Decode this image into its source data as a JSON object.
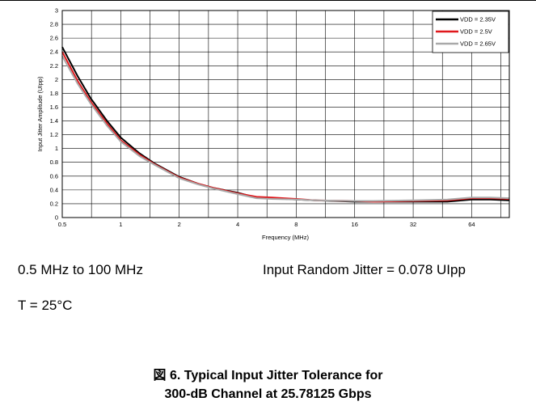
{
  "chart_data": {
    "type": "line",
    "title": "",
    "xlabel": "Frequency (MHz)",
    "ylabel": "Input Jitter Amplitude (UIpp)",
    "xscale": "log2",
    "xlim": [
      0.5,
      100
    ],
    "ylim": [
      0,
      3
    ],
    "grid": true,
    "legend_position": "top-right",
    "x_ticks": [
      0.5,
      1,
      2,
      4,
      8,
      16,
      32,
      64
    ],
    "x_tick_labels": [
      "0.5",
      "1",
      "2",
      "4",
      "8",
      "16",
      "32",
      "64"
    ],
    "y_ticks": [
      0,
      0.2,
      0.4,
      0.6,
      0.8,
      1,
      1.2,
      1.4,
      1.6,
      1.8,
      2,
      2.2,
      2.4,
      2.6,
      2.8,
      3
    ],
    "y_tick_labels": [
      "0",
      "0.2",
      "0.4",
      "0.6",
      "0.8",
      "1",
      "1.2",
      "1.4",
      "1.6",
      "1.8",
      "2",
      "2.2",
      "2.4",
      "2.6",
      "2.8",
      "3"
    ],
    "x": [
      0.5,
      0.6,
      0.7,
      0.85,
      1,
      1.25,
      1.5,
      2,
      2.5,
      3,
      4,
      5,
      6,
      8,
      10,
      16,
      20,
      32,
      48,
      64,
      80,
      100
    ],
    "series": [
      {
        "name": "VDD = 2.35V",
        "color": "#000000",
        "values": [
          2.47,
          2.05,
          1.73,
          1.4,
          1.16,
          0.93,
          0.78,
          0.59,
          0.49,
          0.43,
          0.36,
          0.29,
          0.28,
          0.26,
          0.25,
          0.23,
          0.23,
          0.23,
          0.23,
          0.26,
          0.26,
          0.25
        ]
      },
      {
        "name": "VDD = 2.5V",
        "color": "#e0181c",
        "values": [
          2.4,
          1.98,
          1.68,
          1.36,
          1.12,
          0.91,
          0.77,
          0.58,
          0.49,
          0.43,
          0.35,
          0.3,
          0.29,
          0.27,
          0.25,
          0.24,
          0.23,
          0.24,
          0.25,
          0.28,
          0.28,
          0.27
        ]
      },
      {
        "name": "VDD = 2.65V",
        "color": "#a9a9a9",
        "values": [
          2.34,
          1.94,
          1.65,
          1.33,
          1.1,
          0.89,
          0.76,
          0.57,
          0.48,
          0.42,
          0.34,
          0.28,
          0.27,
          0.26,
          0.25,
          0.24,
          0.24,
          0.25,
          0.26,
          0.29,
          0.29,
          0.28
        ]
      }
    ]
  },
  "conditions": {
    "frequency_range": "0.5 MHz to 100 MHz",
    "temperature": "T = 25°C",
    "random_jitter": "Input Random Jitter = 0.078 UIpp"
  },
  "caption": {
    "line1": "図 6. Typical Input Jitter Tolerance for",
    "line2": "300-dB Channel at 25.78125 Gbps"
  }
}
